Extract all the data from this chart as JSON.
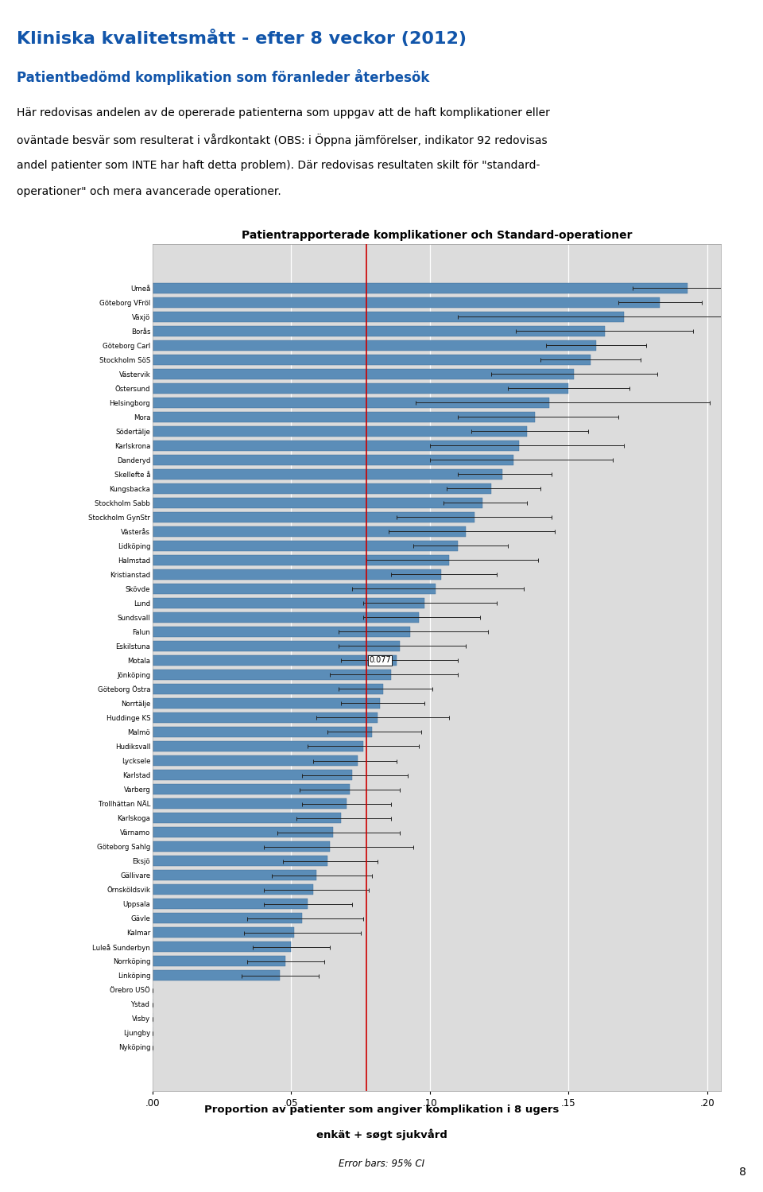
{
  "title_main": "Kliniska kvalitetsmått - efter 8 veckor (2012)",
  "title_sub": "Patientbedömd komplikation som föranleder återbesök",
  "body_text_lines": [
    "Här redovisas andelen av de opererade patienterna som uppgav att de haft komplikationer eller",
    "oväntade besvär som resulterat i vårdkontakt (OBS: i Öppna jämförelser, indikator 92 redovisas",
    "andel patienter som INTE har haft detta problem). Där redovisas resultaten skilt för \"standard-",
    "operationer\" och mera avancerade operationer."
  ],
  "chart_title": "Patientrapporterade komplikationer och Standard-operationer",
  "xlabel_line1": "Proportion av patienter som angiver komplikation i 8 ugers",
  "xlabel_line2": "enkät + søgt sjukvård",
  "error_label": "Error bars: 95% CI",
  "reference_line": 0.077,
  "reference_label": "0.077",
  "xticks": [
    0.0,
    0.05,
    0.1,
    0.15,
    0.2
  ],
  "xticklabels": [
    ".00",
    ".05",
    ".10",
    ".15",
    ".20"
  ],
  "categories": [
    "Umeå",
    "Göteborg VFröl",
    "Växjö",
    "Borås",
    "Göteborg Carl",
    "Stockholm SöS",
    "Västervik",
    "Östersund",
    "Helsingborg",
    "Mora",
    "Södertälje",
    "Karlskrona",
    "Danderyd",
    "Skellefte å",
    "Kungsbacka",
    "Stockholm Sabb",
    "Stockholm GynStr",
    "Västerås",
    "Lidköping",
    "Halmstad",
    "Kristianstad",
    "Skövde",
    "Lund",
    "Sundsvall",
    "Falun",
    "Eskilstuna",
    "Motala",
    "Jönköping",
    "Göteborg Östra",
    "Norrtälje",
    "Huddinge KS",
    "Malmö",
    "Hudiksvall",
    "Lycksele",
    "Karlstad",
    "Varberg",
    "Trollhättan NÄL",
    "Karlskoga",
    "Värnamo",
    "Göteborg Sahlg",
    "Eksjö",
    "Gällivare",
    "Örnsköldsvik",
    "Uppsala",
    "Gävle",
    "Kalmar",
    "Luleå Sunderbyn",
    "Norrköping",
    "Linköping",
    "Örebro USÖ",
    "Ystad",
    "Visby",
    "Ljungby",
    "Nyköping"
  ],
  "values": [
    0.193,
    0.183,
    0.17,
    0.163,
    0.16,
    0.158,
    0.152,
    0.15,
    0.143,
    0.138,
    0.135,
    0.132,
    0.13,
    0.126,
    0.122,
    0.119,
    0.116,
    0.113,
    0.11,
    0.107,
    0.104,
    0.102,
    0.098,
    0.096,
    0.093,
    0.089,
    0.088,
    0.086,
    0.083,
    0.082,
    0.081,
    0.079,
    0.076,
    0.074,
    0.072,
    0.071,
    0.07,
    0.068,
    0.065,
    0.064,
    0.063,
    0.059,
    0.058,
    0.056,
    0.054,
    0.051,
    0.05,
    0.048,
    0.046,
    0.0,
    0.0,
    0.0,
    0.0,
    0.0
  ],
  "ci_lower_err": [
    0.02,
    0.015,
    0.06,
    0.032,
    0.018,
    0.018,
    0.03,
    0.022,
    0.048,
    0.028,
    0.02,
    0.032,
    0.03,
    0.016,
    0.016,
    0.014,
    0.028,
    0.028,
    0.016,
    0.03,
    0.018,
    0.03,
    0.022,
    0.02,
    0.026,
    0.022,
    0.02,
    0.022,
    0.016,
    0.014,
    0.022,
    0.016,
    0.02,
    0.016,
    0.018,
    0.018,
    0.016,
    0.016,
    0.02,
    0.024,
    0.016,
    0.016,
    0.018,
    0.016,
    0.02,
    0.018,
    0.014,
    0.014,
    0.014,
    0.0,
    0.0,
    0.0,
    0.0,
    0.0
  ],
  "ci_upper_err": [
    0.02,
    0.015,
    0.065,
    0.032,
    0.018,
    0.018,
    0.03,
    0.022,
    0.058,
    0.03,
    0.022,
    0.038,
    0.036,
    0.018,
    0.018,
    0.016,
    0.028,
    0.032,
    0.018,
    0.032,
    0.02,
    0.032,
    0.026,
    0.022,
    0.028,
    0.024,
    0.022,
    0.024,
    0.018,
    0.016,
    0.026,
    0.018,
    0.02,
    0.014,
    0.02,
    0.018,
    0.016,
    0.018,
    0.024,
    0.03,
    0.018,
    0.02,
    0.02,
    0.016,
    0.022,
    0.024,
    0.014,
    0.014,
    0.014,
    0.0,
    0.0,
    0.0,
    0.0,
    0.0
  ],
  "bar_color": "#5B8DB8",
  "bar_edge_color": "#3A6B96",
  "error_color": "#222222",
  "refline_color": "#CC0000",
  "plot_bg": "#DCDCDC",
  "outer_bg": "#E8E8E8",
  "title_color": "#1155AA",
  "subtitle_color": "#1155AA",
  "page_number": "8"
}
